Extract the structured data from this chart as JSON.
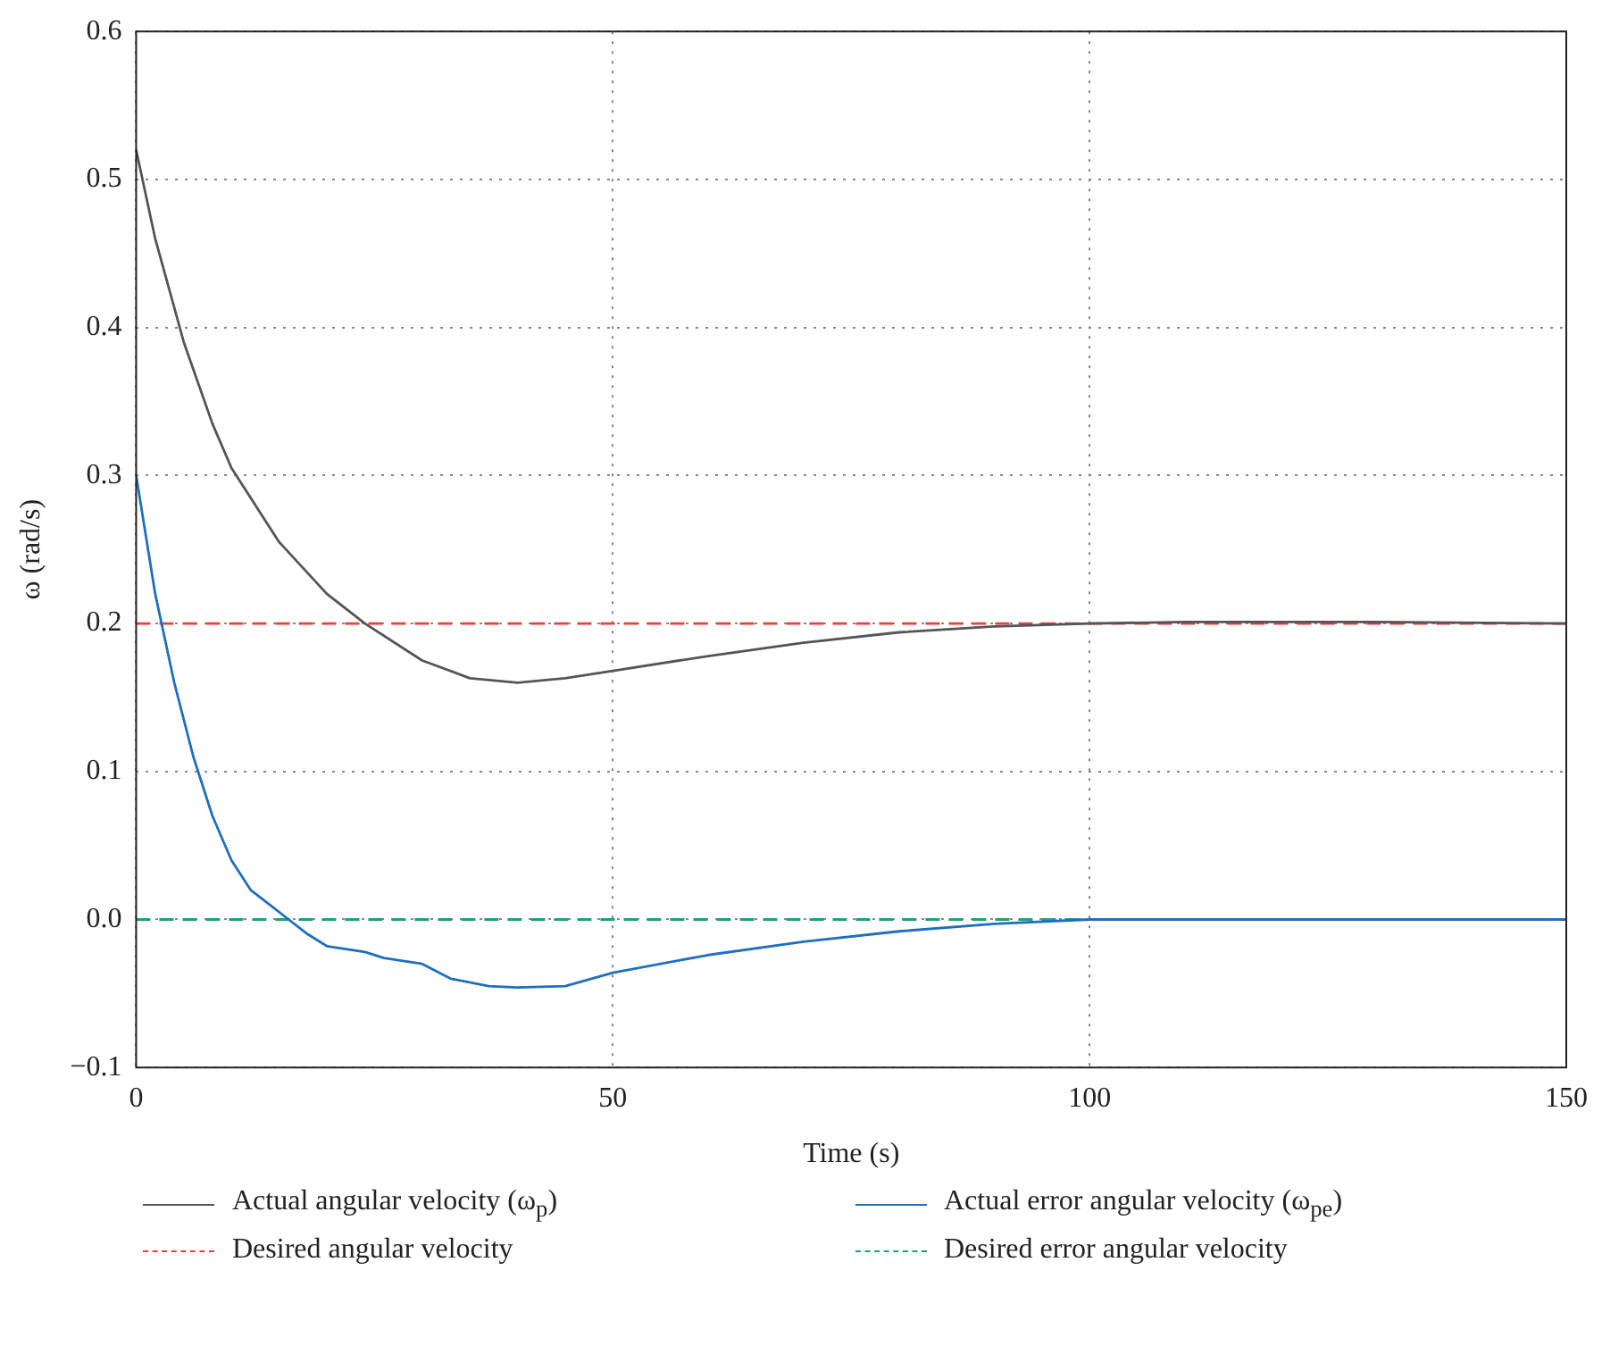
{
  "chart_data": {
    "type": "line",
    "xlabel": "Time (s)",
    "ylabel": "ω (rad/s)",
    "xlim": [
      0,
      150
    ],
    "xticks": [
      0,
      50,
      100,
      150
    ],
    "ylim": [
      -0.1,
      0.6
    ],
    "yticks": [
      {
        "value": -0.1,
        "label": "−0.1"
      },
      {
        "value": 0,
        "label": "0.0"
      },
      0.1,
      0.2,
      0.3,
      0.4,
      0.5,
      0.6
    ],
    "grid": true,
    "legend": "bottom",
    "marker": "none",
    "series": [
      {
        "name": "Actual angular velocity (ω$_{p}$)",
        "color": "#555555",
        "line_style": "solid",
        "x": [
          0,
          2,
          5,
          8,
          10,
          15,
          20,
          24,
          30,
          35,
          40,
          45,
          50,
          60,
          70,
          80,
          90,
          100,
          110,
          120,
          130,
          150
        ],
        "values": [
          0.52,
          0.46,
          0.39,
          0.335,
          0.305,
          0.255,
          0.22,
          0.2,
          0.175,
          0.163,
          0.16,
          0.163,
          0.168,
          0.178,
          0.187,
          0.194,
          0.198,
          0.2,
          0.201,
          0.201,
          0.201,
          0.2
        ]
      },
      {
        "name": "Actual error angular velocity (ω$_{pe}$)",
        "color": "#1f6fc0",
        "line_style": "solid",
        "x": [
          0,
          2,
          4,
          6,
          8,
          10,
          12,
          14,
          16,
          18,
          20,
          24,
          26,
          30,
          33,
          37,
          40,
          45,
          50,
          60,
          70,
          80,
          90,
          100,
          150
        ],
        "values": [
          0.3,
          0.22,
          0.16,
          0.11,
          0.07,
          0.04,
          0.02,
          0.01,
          0,
          -0.01,
          -0.018,
          -0.022,
          -0.026,
          -0.03,
          -0.04,
          -0.045,
          -0.046,
          -0.045,
          -0.036,
          -0.024,
          -0.015,
          -0.008,
          -0.003,
          0,
          0
        ]
      },
      {
        "name": "Desired angular velocity",
        "color": "#e8413a",
        "line_style": "dashed",
        "x": [
          0,
          150
        ],
        "values": [
          0.2,
          0.2
        ]
      },
      {
        "name": "Desired error angular velocity",
        "color": "#1aa37a",
        "line_style": "dashed",
        "x": [
          0,
          150
        ],
        "values": [
          0,
          0
        ]
      }
    ]
  }
}
